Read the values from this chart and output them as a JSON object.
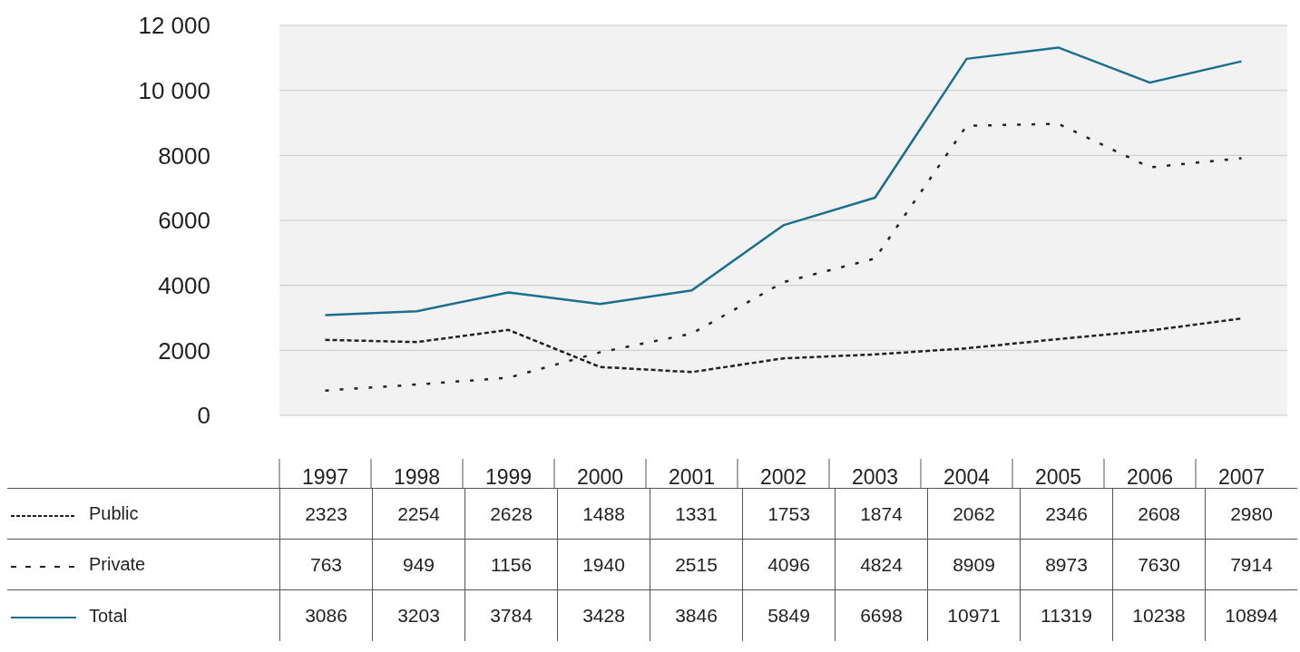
{
  "chart_data": {
    "type": "line",
    "categories": [
      "1997",
      "1998",
      "1999",
      "2000",
      "2001",
      "2002",
      "2003",
      "2004",
      "2005",
      "2006",
      "2007"
    ],
    "series": [
      {
        "name": "Public",
        "color": "#222222",
        "line_style": "dashed",
        "values": [
          2323,
          2254,
          2628,
          1488,
          1331,
          1753,
          1874,
          2062,
          2346,
          2608,
          2980
        ]
      },
      {
        "name": "Private",
        "color": "#222222",
        "line_style": "dotted",
        "values": [
          763,
          949,
          1156,
          1940,
          2515,
          4096,
          4824,
          8909,
          8973,
          7630,
          7914
        ]
      },
      {
        "name": "Total",
        "color": "#1a6f8f",
        "line_style": "solid",
        "values": [
          3086,
          3203,
          3784,
          3428,
          3846,
          5849,
          6698,
          10971,
          11319,
          10238,
          10894
        ]
      }
    ],
    "ylim": [
      0,
      12000
    ],
    "yticks": [
      0,
      2000,
      4000,
      6000,
      8000,
      {
        "value": 10000,
        "label": "10 000"
      },
      {
        "value": 12000,
        "label": "12 000"
      }
    ],
    "grid": "y",
    "legend": "bottom",
    "marker": "none",
    "data_labels": true
  }
}
